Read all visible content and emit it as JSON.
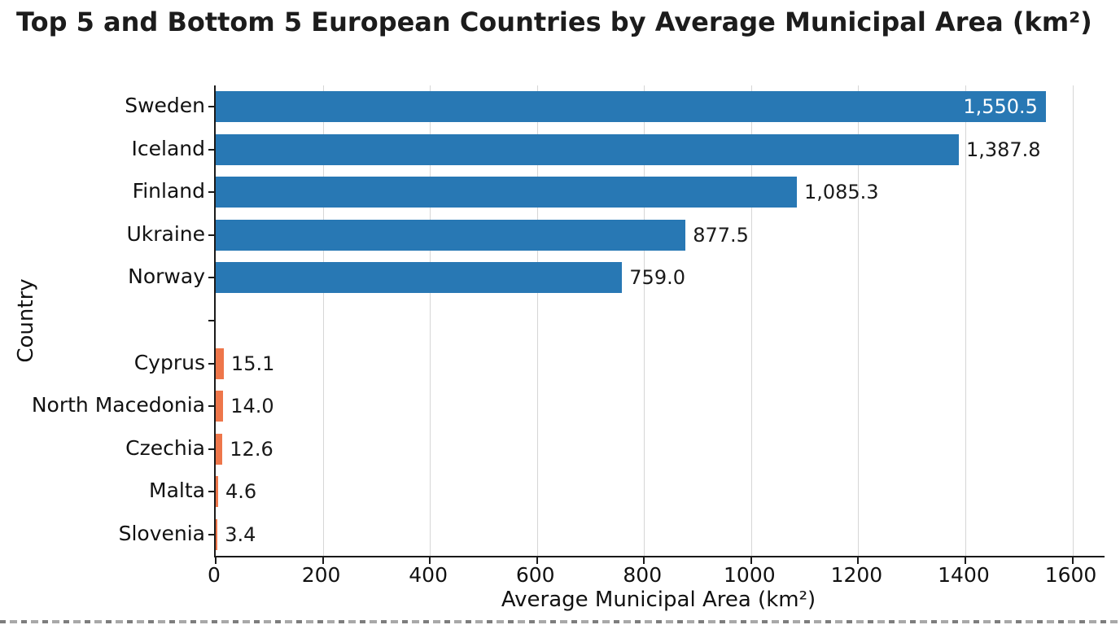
{
  "chart_data": {
    "type": "bar",
    "orientation": "horizontal",
    "title": "Top 5 and Bottom 5 European Countries by Average Municipal Area (km²)",
    "xlabel": "Average Municipal Area (km²)",
    "ylabel": "Country",
    "xlim": [
      0,
      1660
    ],
    "xticks": [
      0,
      200,
      400,
      600,
      800,
      1000,
      1200,
      1400,
      1600
    ],
    "xticklabels": [
      "0",
      "200",
      "400",
      "600",
      "800",
      "1000",
      "1200",
      "1400",
      "1600"
    ],
    "grid": "vertical-light",
    "legend": "none",
    "colors": {
      "top": "#2878b4",
      "bottom": "#ee764a"
    },
    "rows": [
      {
        "label": "Sweden",
        "value": 1550.5,
        "display": "1,550.5",
        "group": "top",
        "label_inside": true
      },
      {
        "label": "Iceland",
        "value": 1387.8,
        "display": "1,387.8",
        "group": "top",
        "label_inside": false
      },
      {
        "label": "Finland",
        "value": 1085.3,
        "display": "1,085.3",
        "group": "top",
        "label_inside": false
      },
      {
        "label": "Ukraine",
        "value": 877.5,
        "display": "877.5",
        "group": "top",
        "label_inside": false
      },
      {
        "label": "Norway",
        "value": 759.0,
        "display": "759.0",
        "group": "top",
        "label_inside": false
      },
      {
        "label": "",
        "value": null,
        "display": "",
        "group": "gap",
        "label_inside": false
      },
      {
        "label": "Cyprus",
        "value": 15.1,
        "display": "15.1",
        "group": "bottom",
        "label_inside": false
      },
      {
        "label": "North Macedonia",
        "value": 14.0,
        "display": "14.0",
        "group": "bottom",
        "label_inside": false
      },
      {
        "label": "Czechia",
        "value": 12.6,
        "display": "12.6",
        "group": "bottom",
        "label_inside": false
      },
      {
        "label": "Malta",
        "value": 4.6,
        "display": "4.6",
        "group": "bottom",
        "label_inside": false
      },
      {
        "label": "Slovenia",
        "value": 3.4,
        "display": "3.4",
        "group": "bottom",
        "label_inside": false
      }
    ]
  }
}
